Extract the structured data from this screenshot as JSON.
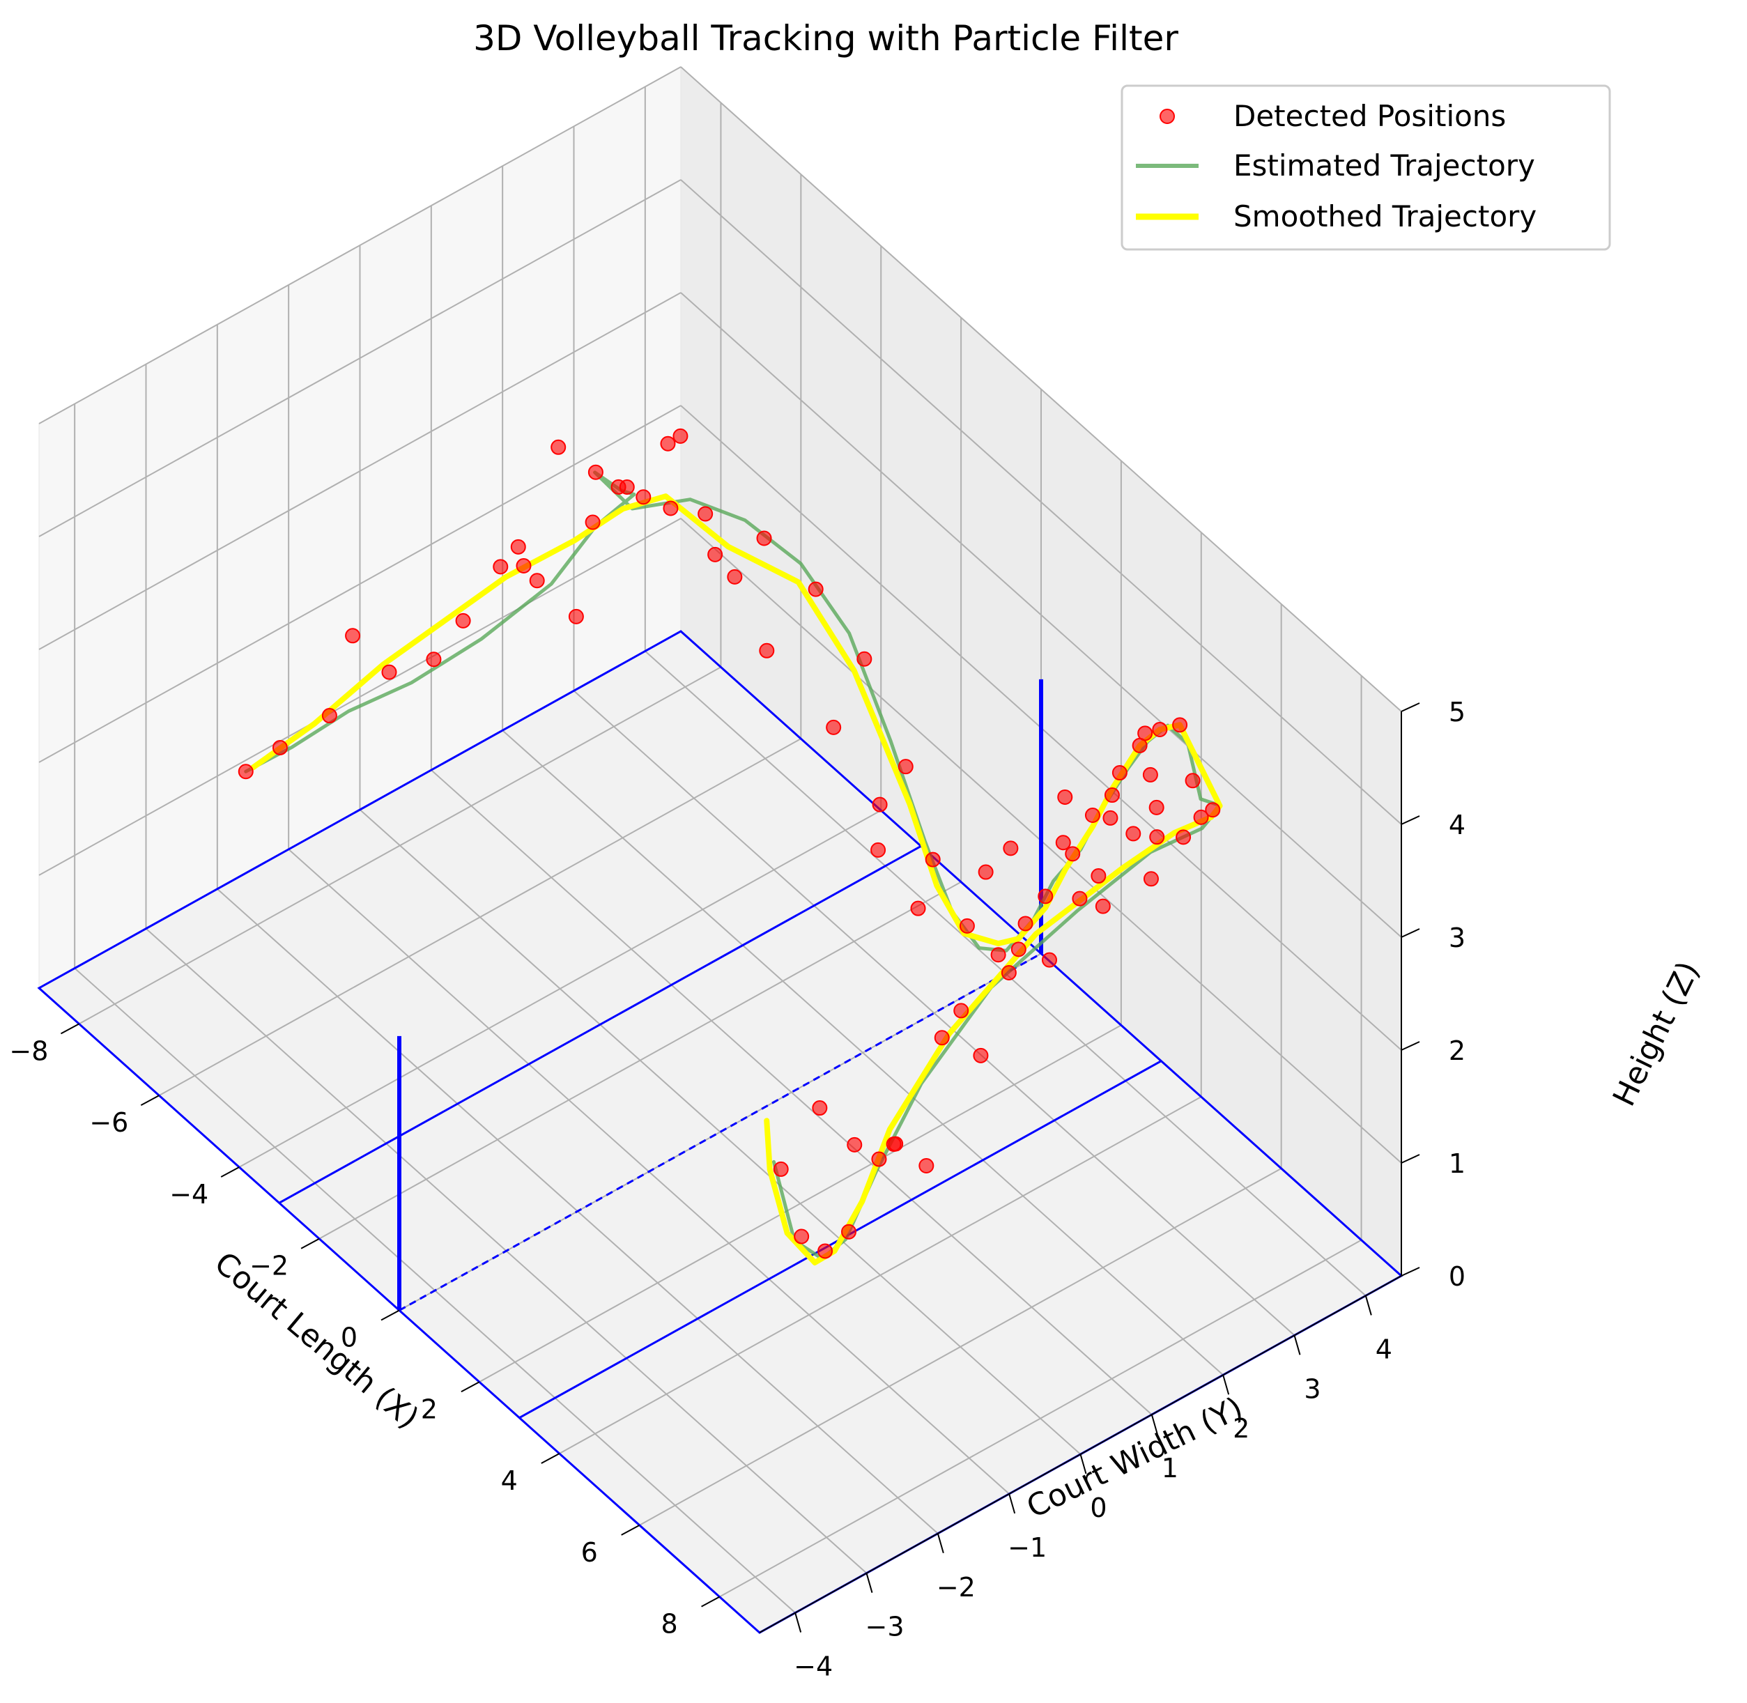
{
  "chart_data": {
    "type": "scatter3d",
    "title": "3D Volleyball Tracking with Particle Filter",
    "xlabel": "Court Length (X)",
    "ylabel": "Court Width (Y)",
    "zlabel": "Height (Z)",
    "xlim": [
      -9,
      9
    ],
    "ylim": [
      -4.5,
      4.5
    ],
    "zlim": [
      0,
      5
    ],
    "xticks": [
      -8,
      -6,
      -4,
      -2,
      0,
      2,
      4,
      6,
      8
    ],
    "yticks": [
      -4,
      -3,
      -2,
      -1,
      0,
      1,
      2,
      3,
      4
    ],
    "zticks": [
      0,
      1,
      2,
      3,
      4,
      5
    ],
    "grid": true,
    "legend_position": "top-right",
    "legend": [
      {
        "label": "Detected Positions",
        "kind": "marker",
        "color": "#ff0000"
      },
      {
        "label": "Estimated Trajectory",
        "kind": "line",
        "color": "#5aa95a"
      },
      {
        "label": "Smoothed Trajectory",
        "kind": "line",
        "color": "#ffff00"
      }
    ],
    "colors": {
      "detected": "#ff0000",
      "estimated": "#5aa95a",
      "smoothed": "#ffff00",
      "court": "#0000ff"
    },
    "court": {
      "rect_x": [
        -9,
        9
      ],
      "rect_y": [
        -4.5,
        4.5
      ],
      "center_line_x": 0,
      "attack_lines_x": [
        -3,
        3
      ],
      "net_height": 2.43,
      "net_posts": [
        [
          0,
          -4.5
        ],
        [
          0,
          4.5
        ]
      ]
    },
    "smoothed": [
      [
        -9.0,
        -1.5,
        0.9
      ],
      [
        -8.0,
        -1.2,
        1.5
      ],
      [
        -7.0,
        -0.8,
        2.2
      ],
      [
        -6.0,
        -0.5,
        2.8
      ],
      [
        -5.0,
        -0.2,
        3.4
      ],
      [
        -4.0,
        0.2,
        3.9
      ],
      [
        -3.5,
        0.6,
        4.2
      ],
      [
        -3.5,
        1.2,
        4.1
      ],
      [
        -3.0,
        1.8,
        3.6
      ],
      [
        -2.5,
        2.5,
        3.2
      ],
      [
        -2.0,
        3.0,
        2.4
      ],
      [
        -1.5,
        3.5,
        1.2
      ],
      [
        -1.0,
        3.6,
        0.6
      ],
      [
        -0.5,
        3.7,
        0.3
      ],
      [
        0.0,
        3.9,
        0.3
      ],
      [
        0.5,
        3.9,
        0.5
      ],
      [
        1.0,
        4.0,
        0.9
      ],
      [
        1.5,
        4.0,
        1.4
      ],
      [
        2.0,
        4.1,
        1.9
      ],
      [
        2.5,
        4.1,
        2.4
      ],
      [
        3.0,
        4.2,
        2.9
      ],
      [
        3.5,
        4.2,
        3.2
      ],
      [
        4.0,
        4.2,
        3.4
      ],
      [
        4.5,
        4.2,
        3.2
      ],
      [
        5.0,
        4.2,
        3.0
      ],
      [
        5.5,
        3.8,
        3.2
      ],
      [
        6.0,
        3.0,
        3.5
      ],
      [
        6.5,
        2.0,
        3.7
      ],
      [
        7.0,
        0.5,
        3.8
      ],
      [
        7.5,
        -1.0,
        3.6
      ],
      [
        7.8,
        -2.0,
        3.2
      ],
      [
        8.0,
        -2.5,
        2.8
      ],
      [
        8.2,
        -3.0,
        2.6
      ],
      [
        8.6,
        -3.5,
        2.8
      ],
      [
        8.8,
        -4.0,
        3.3
      ],
      [
        8.9,
        -4.3,
        4.0
      ],
      [
        9.0,
        -4.4,
        4.5
      ]
    ],
    "estimated": [
      [
        -9.0,
        -1.6,
        0.9
      ],
      [
        -8.2,
        -1.4,
        1.3
      ],
      [
        -7.5,
        -1.0,
        1.7
      ],
      [
        -7.0,
        -0.4,
        1.9
      ],
      [
        -6.5,
        0.3,
        2.2
      ],
      [
        -6.0,
        1.0,
        2.6
      ],
      [
        -5.6,
        1.4,
        3.1
      ],
      [
        -5.0,
        1.6,
        3.5
      ],
      [
        -4.6,
        1.2,
        3.8
      ],
      [
        -4.2,
        0.6,
        4.3
      ],
      [
        -3.8,
        0.9,
        4.0
      ],
      [
        -3.6,
        1.6,
        3.9
      ],
      [
        -3.3,
        2.2,
        3.6
      ],
      [
        -2.8,
        2.7,
        3.2
      ],
      [
        -2.3,
        3.1,
        2.6
      ],
      [
        -1.8,
        3.4,
        1.7
      ],
      [
        -1.3,
        3.6,
        0.9
      ],
      [
        -0.8,
        3.7,
        0.4
      ],
      [
        -0.3,
        3.8,
        0.2
      ],
      [
        0.2,
        3.9,
        0.3
      ],
      [
        0.7,
        4.0,
        0.7
      ],
      [
        1.2,
        4.0,
        1.2
      ],
      [
        1.7,
        4.1,
        1.6
      ],
      [
        2.2,
        4.1,
        2.1
      ],
      [
        2.7,
        4.2,
        2.6
      ],
      [
        3.2,
        4.2,
        3.0
      ],
      [
        3.7,
        4.2,
        3.3
      ],
      [
        4.2,
        4.2,
        3.3
      ],
      [
        4.7,
        4.1,
        3.0
      ],
      [
        5.2,
        4.1,
        3.1
      ],
      [
        5.8,
        3.5,
        3.3
      ],
      [
        6.3,
        2.5,
        3.6
      ],
      [
        6.8,
        1.2,
        3.7
      ],
      [
        7.3,
        -0.3,
        3.7
      ],
      [
        7.7,
        -1.5,
        3.4
      ],
      [
        8.0,
        -2.3,
        3.0
      ],
      [
        8.3,
        -2.9,
        2.7
      ],
      [
        8.6,
        -3.4,
        2.8
      ],
      [
        8.8,
        -3.9,
        3.2
      ],
      [
        9.0,
        -4.3,
        4.1
      ]
    ],
    "detected": [
      [
        -9.0,
        -1.6,
        0.9
      ],
      [
        -8.5,
        -1.4,
        1.2
      ],
      [
        -7.8,
        -1.1,
        1.6
      ],
      [
        -7.2,
        -0.6,
        2.0
      ],
      [
        -6.6,
        0.1,
        2.4
      ],
      [
        -6.0,
        0.8,
        2.7
      ],
      [
        -5.5,
        1.3,
        3.2
      ],
      [
        -5.0,
        1.5,
        3.6
      ],
      [
        -4.5,
        1.1,
        3.9
      ],
      [
        -4.0,
        0.5,
        4.4
      ],
      [
        -3.7,
        1.0,
        4.1
      ],
      [
        -3.4,
        1.7,
        3.8
      ],
      [
        -3.0,
        2.3,
        3.5
      ],
      [
        -2.6,
        2.8,
        3.0
      ],
      [
        -2.1,
        3.2,
        2.4
      ],
      [
        -1.6,
        3.5,
        1.5
      ],
      [
        -1.1,
        3.6,
        0.8
      ],
      [
        -0.6,
        3.8,
        0.3
      ],
      [
        0.0,
        3.9,
        0.2
      ],
      [
        0.5,
        4.0,
        0.6
      ],
      [
        1.0,
        4.0,
        1.0
      ],
      [
        1.5,
        4.1,
        1.5
      ],
      [
        2.0,
        4.1,
        2.0
      ],
      [
        2.5,
        4.2,
        2.5
      ],
      [
        3.0,
        4.2,
        2.9
      ],
      [
        3.5,
        4.2,
        3.2
      ],
      [
        4.0,
        4.2,
        3.4
      ],
      [
        4.5,
        4.1,
        3.1
      ],
      [
        5.0,
        4.1,
        3.0
      ],
      [
        5.6,
        3.6,
        3.3
      ],
      [
        6.1,
        2.7,
        3.6
      ],
      [
        6.6,
        1.6,
        3.8
      ],
      [
        7.1,
        0.2,
        3.8
      ],
      [
        7.5,
        -1.1,
        3.6
      ],
      [
        7.9,
        -2.0,
        3.1
      ],
      [
        8.2,
        -2.8,
        2.7
      ],
      [
        8.5,
        -3.3,
        2.8
      ],
      [
        8.8,
        -3.8,
        3.2
      ],
      [
        9.0,
        -4.2,
        4.0
      ],
      [
        -5.8,
        0.5,
        3.0
      ],
      [
        -5.2,
        0.9,
        2.6
      ],
      [
        -4.8,
        2.0,
        3.3
      ],
      [
        -4.2,
        1.8,
        4.2
      ],
      [
        -3.2,
        2.0,
        3.2
      ],
      [
        -2.4,
        2.0,
        2.8
      ],
      [
        -1.8,
        2.6,
        2.1
      ],
      [
        -1.0,
        2.8,
        1.6
      ],
      [
        -0.4,
        3.0,
        0.8
      ],
      [
        0.4,
        3.5,
        1.2
      ],
      [
        1.2,
        3.4,
        1.7
      ],
      [
        2.2,
        3.6,
        2.4
      ],
      [
        3.2,
        3.7,
        2.7
      ],
      [
        4.2,
        3.6,
        3.6
      ],
      [
        5.2,
        3.2,
        3.4
      ],
      [
        6.0,
        2.0,
        3.2
      ],
      [
        6.8,
        0.8,
        3.4
      ],
      [
        7.4,
        -0.5,
        3.2
      ],
      [
        8.0,
        -1.6,
        2.8
      ],
      [
        8.6,
        -2.6,
        3.4
      ],
      [
        -6.8,
        -0.2,
        2.1
      ],
      [
        -6.2,
        0.4,
        2.9
      ],
      [
        -4.4,
        0.2,
        4.6
      ],
      [
        -3.8,
        1.4,
        4.4
      ],
      [
        -2.8,
        1.5,
        3.7
      ],
      [
        -1.4,
        3.0,
        1.0
      ],
      [
        0.8,
        3.6,
        0.4
      ],
      [
        1.8,
        3.8,
        1.8
      ],
      [
        2.8,
        3.9,
        2.3
      ],
      [
        3.8,
        3.9,
        3.0
      ],
      [
        4.8,
        3.8,
        2.8
      ],
      [
        5.6,
        2.9,
        3.0
      ],
      [
        6.4,
        2.2,
        3.9
      ],
      [
        7.2,
        1.0,
        4.0
      ],
      [
        7.8,
        -1.0,
        3.9
      ],
      [
        8.3,
        -2.2,
        3.3
      ],
      [
        8.7,
        -3.0,
        3.7
      ],
      [
        8.9,
        -3.6,
        4.3
      ],
      [
        -7.4,
        -1.0,
        2.4
      ],
      [
        -5.4,
        0.2,
        3.4
      ]
    ]
  }
}
